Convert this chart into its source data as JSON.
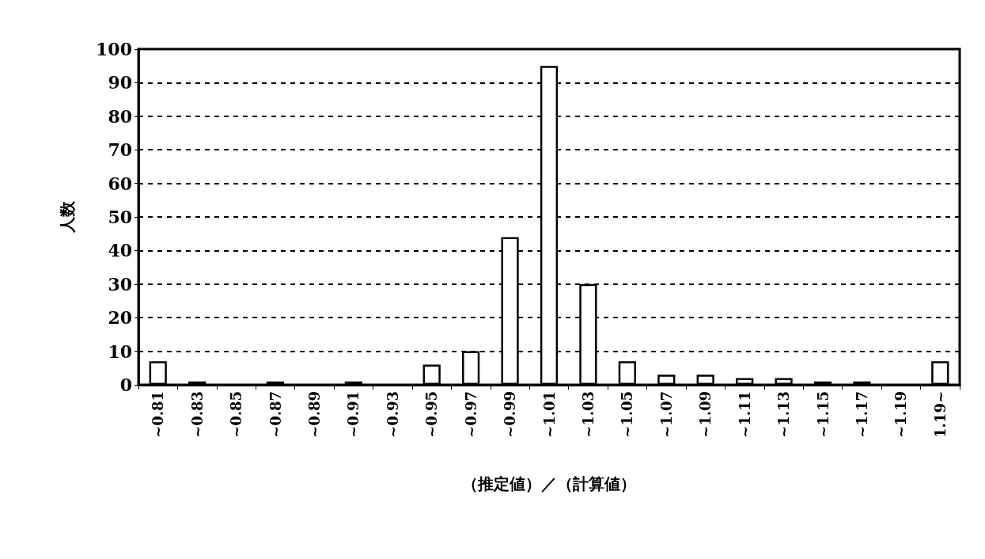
{
  "chart_data": {
    "type": "bar",
    "xlabel": "（推定値）／（計算値）",
    "ylabel": "人数",
    "categories": [
      "~0.81",
      "~0.83",
      "~0.85",
      "~0.87",
      "~0.89",
      "~0.91",
      "~0.93",
      "~0.95",
      "~0.97",
      "~0.99",
      "~1.01",
      "~1.03",
      "~1.05",
      "~1.07",
      "~1.09",
      "~1.11",
      "~1.13",
      "~1.15",
      "~1.17",
      "~1.19",
      "1.19~"
    ],
    "values": [
      7,
      1,
      0,
      1,
      0,
      1,
      0,
      6,
      10,
      44,
      95,
      30,
      7,
      3,
      3,
      2,
      2,
      1,
      1,
      0,
      7
    ],
    "color": "#ffffff",
    "ylim": [
      0,
      100
    ],
    "yticks": [
      0,
      10,
      20,
      30,
      40,
      50,
      60,
      70,
      80,
      90,
      100
    ],
    "grid": "y"
  }
}
